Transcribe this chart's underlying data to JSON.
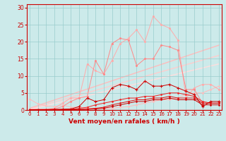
{
  "background_color": "#cceaea",
  "grid_color": "#99cccc",
  "xlabel": "Vent moyen/en rafales ( km/h )",
  "ylabel_ticks": [
    0,
    5,
    10,
    15,
    20,
    25,
    30
  ],
  "xlim": [
    -0.3,
    23.3
  ],
  "ylim": [
    0,
    31
  ],
  "xlabel_color": "#cc0000",
  "xlabel_fontsize": 6.5,
  "tick_color": "#cc0000",
  "tick_fontsize": 5.5,
  "line_pink_x": [
    0,
    1,
    2,
    3,
    4,
    5,
    6,
    7,
    8,
    9,
    10,
    11,
    12,
    13,
    14,
    15,
    16,
    17,
    18,
    19,
    20,
    21,
    22,
    23
  ],
  "line_pink_y": [
    3.2,
    1.8,
    1.2,
    1.0,
    1.5,
    0.8,
    0.8,
    0.5,
    0.5,
    0.5,
    0.5,
    0.8,
    1.0,
    1.5,
    2.0,
    2.5,
    3.0,
    3.0,
    3.5,
    4.5,
    5.0,
    5.0,
    6.0,
    7.0
  ],
  "line_lpink_x": [
    0,
    1,
    2,
    3,
    4,
    5,
    6,
    7,
    8,
    9,
    10,
    11,
    12,
    13,
    14,
    15,
    16,
    17,
    18,
    19,
    20,
    21,
    22,
    23
  ],
  "line_lpink_y": [
    0.2,
    0.2,
    0.3,
    0.5,
    2.0,
    3.5,
    3.5,
    13.5,
    11.5,
    10.5,
    14.5,
    19.5,
    21.0,
    23.5,
    20.0,
    27.5,
    25.0,
    24.0,
    20.5,
    3.5,
    6.5,
    7.5,
    7.5,
    6.0
  ],
  "line_mpink_x": [
    0,
    1,
    2,
    3,
    4,
    5,
    6,
    7,
    8,
    9,
    10,
    11,
    12,
    13,
    14,
    15,
    16,
    17,
    18,
    19,
    20,
    21,
    22,
    23
  ],
  "line_mpink_y": [
    0.1,
    0.2,
    0.2,
    0.3,
    1.0,
    2.5,
    3.5,
    4.0,
    14.5,
    10.5,
    19.5,
    21.0,
    20.5,
    13.0,
    15.0,
    15.0,
    19.0,
    18.5,
    17.5,
    6.0,
    6.0,
    2.0,
    2.0,
    2.0
  ],
  "line_red_x": [
    0,
    1,
    2,
    3,
    4,
    5,
    6,
    7,
    8,
    9,
    10,
    11,
    12,
    13,
    14,
    15,
    16,
    17,
    18,
    19,
    20,
    21,
    22,
    23
  ],
  "line_red_y": [
    0.1,
    0.1,
    0.1,
    0.2,
    0.2,
    0.3,
    1.0,
    3.5,
    2.5,
    3.0,
    6.5,
    7.5,
    7.0,
    6.0,
    8.5,
    7.0,
    7.0,
    7.5,
    6.5,
    5.5,
    4.5,
    1.0,
    2.5,
    2.5
  ],
  "line_dred_x": [
    0,
    1,
    2,
    3,
    4,
    5,
    6,
    7,
    8,
    9,
    10,
    11,
    12,
    13,
    14,
    15,
    16,
    17,
    18,
    19,
    20,
    21,
    22,
    23
  ],
  "line_dred_y": [
    0.0,
    0.0,
    0.1,
    0.1,
    0.2,
    0.2,
    0.5,
    0.8,
    1.5,
    2.0,
    2.5,
    3.0,
    3.5,
    3.5,
    4.0,
    4.0,
    4.5,
    5.0,
    5.0,
    4.5,
    4.0,
    2.5,
    2.0,
    2.0
  ],
  "line_red2_x": [
    0,
    1,
    2,
    3,
    4,
    5,
    6,
    7,
    8,
    9,
    10,
    11,
    12,
    13,
    14,
    15,
    16,
    17,
    18,
    19,
    20,
    21,
    22,
    23
  ],
  "line_red2_y": [
    0.0,
    0.0,
    0.0,
    0.0,
    0.1,
    0.1,
    0.2,
    0.3,
    0.5,
    0.8,
    1.5,
    2.0,
    2.5,
    3.0,
    3.0,
    3.5,
    3.5,
    4.0,
    3.5,
    3.5,
    3.5,
    2.0,
    2.0,
    2.0
  ],
  "line_red3_x": [
    0,
    1,
    2,
    3,
    4,
    5,
    6,
    7,
    8,
    9,
    10,
    11,
    12,
    13,
    14,
    15,
    16,
    17,
    18,
    19,
    20,
    21,
    22,
    23
  ],
  "line_red3_y": [
    0.0,
    0.0,
    0.0,
    0.0,
    0.0,
    0.1,
    0.1,
    0.2,
    0.3,
    0.5,
    1.0,
    1.5,
    2.0,
    2.5,
    2.5,
    3.0,
    3.0,
    3.5,
    3.0,
    3.0,
    3.0,
    1.5,
    1.5,
    1.5
  ],
  "trend1_x": [
    0,
    23
  ],
  "trend1_y": [
    0.5,
    19.0
  ],
  "trend2_x": [
    0,
    23
  ],
  "trend2_y": [
    0.3,
    16.0
  ],
  "trend3_x": [
    0,
    23
  ],
  "trend3_y": [
    0.1,
    13.5
  ],
  "xtick_labels": [
    "0",
    "1",
    "2",
    "3",
    "4",
    "5",
    "6",
    "7",
    "8",
    "9",
    "10",
    "11",
    "12",
    "13",
    "14",
    "15",
    "16",
    "17",
    "18",
    "19",
    "20",
    "21",
    "22",
    "23"
  ]
}
